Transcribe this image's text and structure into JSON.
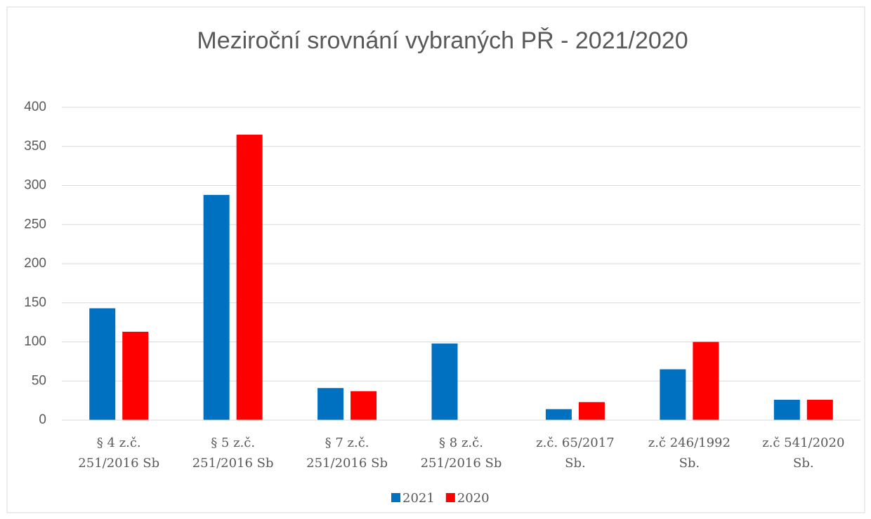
{
  "chart_data": {
    "type": "bar",
    "title": "Meziroční srovnání  vybraných PŘ - 2021/2020",
    "categories": [
      "§ 4 z.č.\n251/2016 Sb",
      "§ 5  z.č.\n251/2016 Sb",
      "§ 7  z.č.\n251/2016 Sb",
      "§ 8  z.č.\n251/2016 Sb",
      "z.č. 65/2017\nSb.",
      "z.č 246/1992\nSb.",
      "z.č 541/2020\nSb."
    ],
    "series": [
      {
        "name": "2021",
        "color": "#0070c0",
        "values": [
          143,
          288,
          41,
          98,
          14,
          65,
          26
        ]
      },
      {
        "name": "2020",
        "color": "#ff0000",
        "values": [
          113,
          365,
          37,
          null,
          23,
          100,
          26
        ]
      }
    ],
    "ylim": [
      0,
      400
    ],
    "yticks": [
      0,
      50,
      100,
      150,
      200,
      250,
      300,
      350,
      400
    ],
    "grid": true,
    "legend": "bottom"
  }
}
